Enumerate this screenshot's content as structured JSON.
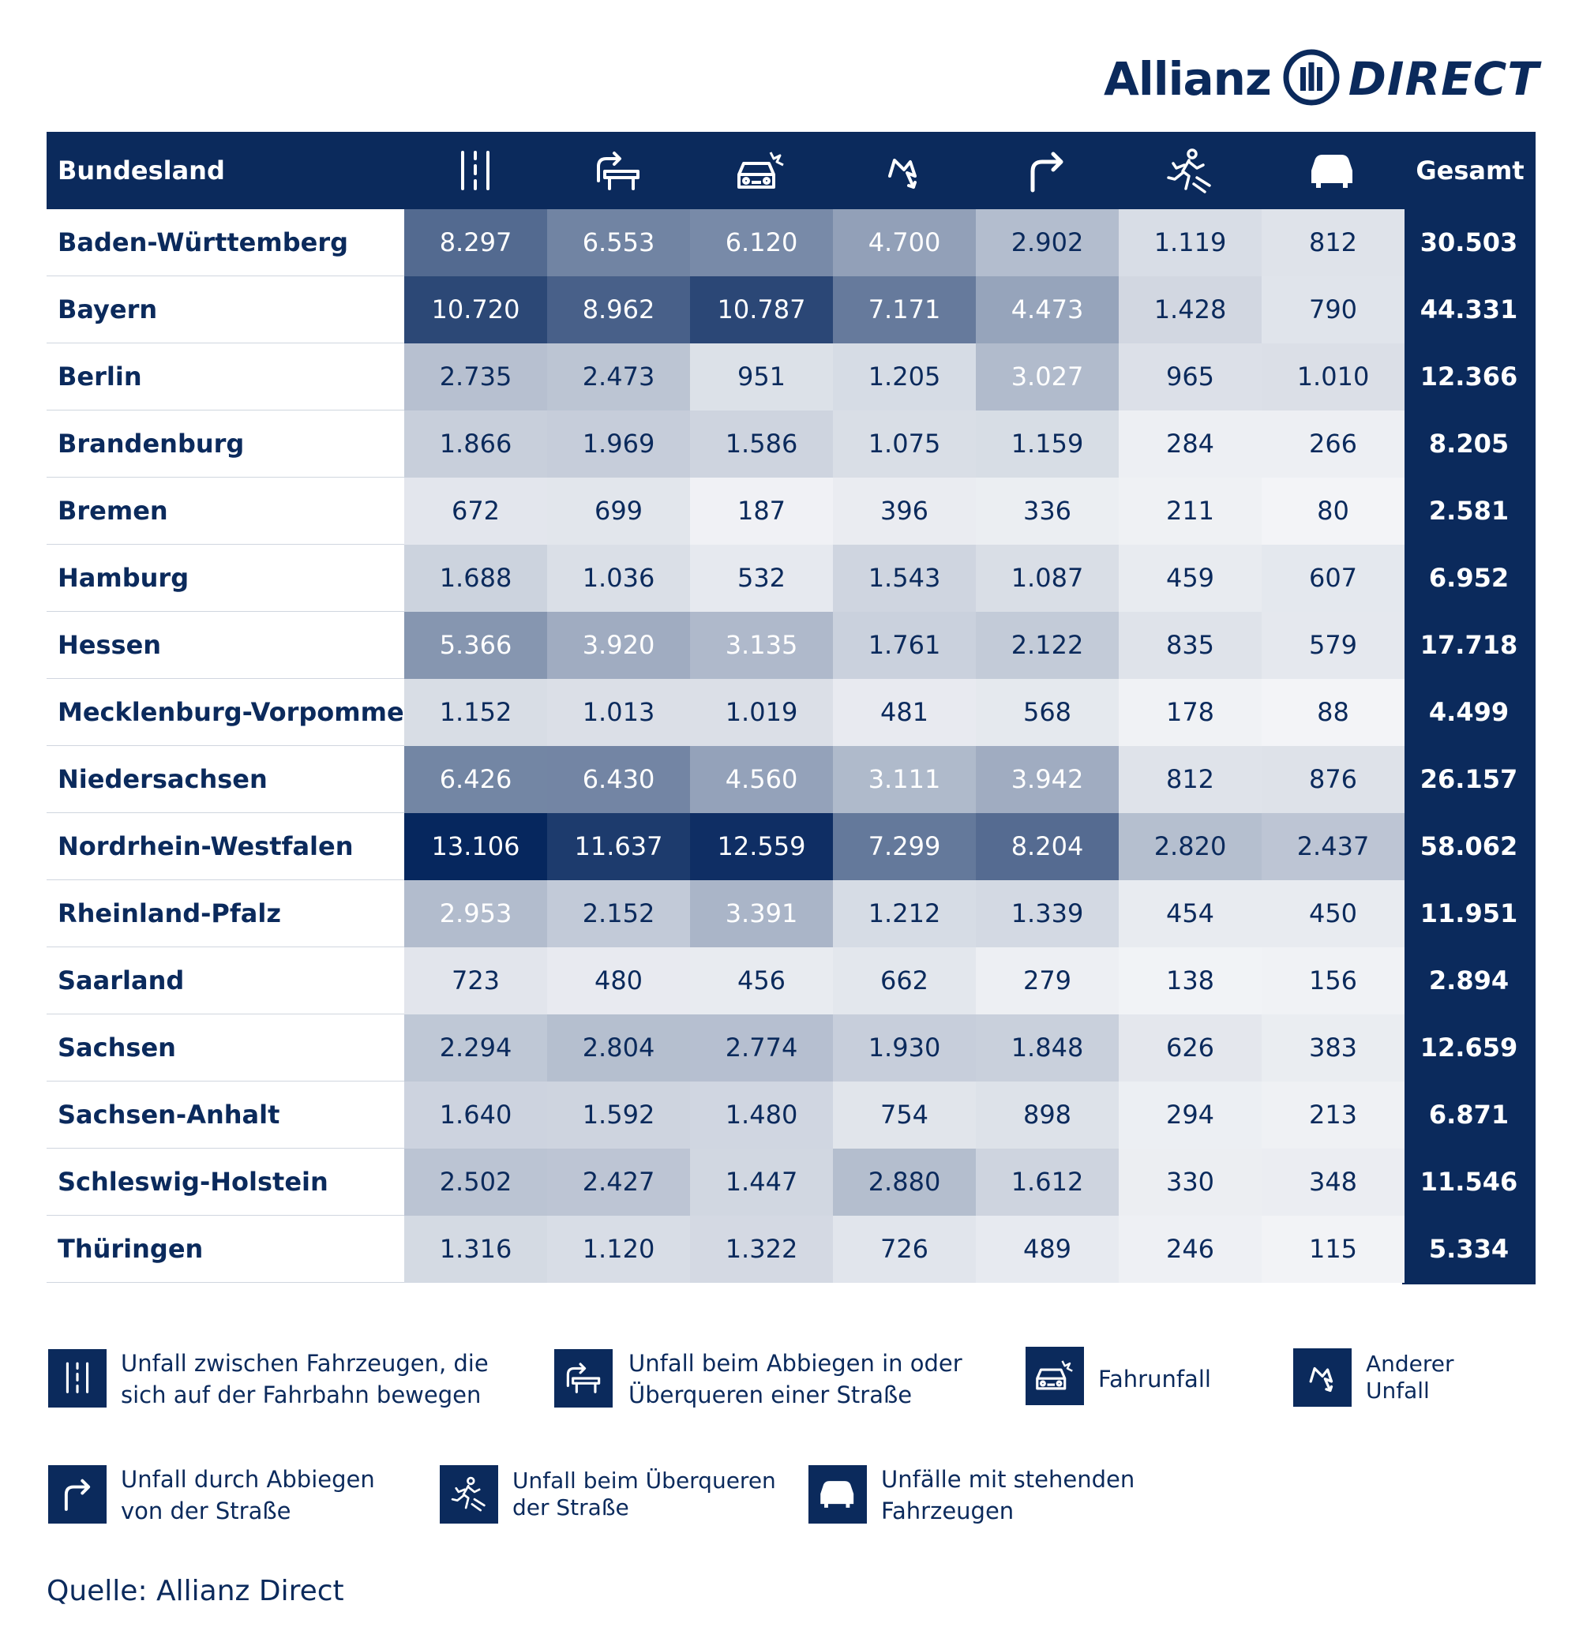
{
  "brand": {
    "name_left": "Allianz",
    "name_right": "DIRECT",
    "mark": "allianz-eagle-logo",
    "color": "#0b2a5c",
    "accent": "#3fd0f0"
  },
  "chart_data": {
    "type": "table",
    "header": {
      "first": "Bundesland",
      "last": "Gesamt"
    },
    "categories": [
      "fahrbahn-icon",
      "abbiegen-kreuzen-icon",
      "fahrunfall-icon",
      "anderer-unfall-icon",
      "abbiegen-icon",
      "fussgaenger-icon",
      "stehende-fahrzeuge-icon"
    ],
    "rows": [
      {
        "name": "Baden-Württemberg",
        "values": [
          "8.297",
          "6.553",
          "6.120",
          "4.700",
          "2.902",
          "1.119",
          "812"
        ],
        "nums": [
          8297,
          6553,
          6120,
          4700,
          2902,
          1119,
          812
        ],
        "total": "30.503"
      },
      {
        "name": "Bayern",
        "values": [
          "10.720",
          "8.962",
          "10.787",
          "7.171",
          "4.473",
          "1.428",
          "790"
        ],
        "nums": [
          10720,
          8962,
          10787,
          7171,
          4473,
          1428,
          790
        ],
        "total": "44.331"
      },
      {
        "name": "Berlin",
        "values": [
          "2.735",
          "2.473",
          "951",
          "1.205",
          "3.027",
          "965",
          "1.010"
        ],
        "nums": [
          2735,
          2473,
          951,
          1205,
          3027,
          965,
          1010
        ],
        "total": "12.366"
      },
      {
        "name": "Brandenburg",
        "values": [
          "1.866",
          "1.969",
          "1.586",
          "1.075",
          "1.159",
          "284",
          "266"
        ],
        "nums": [
          1866,
          1969,
          1586,
          1075,
          1159,
          284,
          266
        ],
        "total": "8.205"
      },
      {
        "name": "Bremen",
        "values": [
          "672",
          "699",
          "187",
          "396",
          "336",
          "211",
          "80"
        ],
        "nums": [
          672,
          699,
          187,
          396,
          336,
          211,
          80
        ],
        "total": "2.581"
      },
      {
        "name": "Hamburg",
        "values": [
          "1.688",
          "1.036",
          "532",
          "1.543",
          "1.087",
          "459",
          "607"
        ],
        "nums": [
          1688,
          1036,
          532,
          1543,
          1087,
          459,
          607
        ],
        "total": "6.952"
      },
      {
        "name": "Hessen",
        "values": [
          "5.366",
          "3.920",
          "3.135",
          "1.761",
          "2.122",
          "835",
          "579"
        ],
        "nums": [
          5366,
          3920,
          3135,
          1761,
          2122,
          835,
          579
        ],
        "total": "17.718"
      },
      {
        "name": "Mecklenburg-Vorpommern",
        "values": [
          "1.152",
          "1.013",
          "1.019",
          "481",
          "568",
          "178",
          "88"
        ],
        "nums": [
          1152,
          1013,
          1019,
          481,
          568,
          178,
          88
        ],
        "total": "4.499"
      },
      {
        "name": "Niedersachsen",
        "values": [
          "6.426",
          "6.430",
          "4.560",
          "3.111",
          "3.942",
          "812",
          "876"
        ],
        "nums": [
          6426,
          6430,
          4560,
          3111,
          3942,
          812,
          876
        ],
        "total": "26.157"
      },
      {
        "name": "Nordrhein-Westfalen",
        "values": [
          "13.106",
          "11.637",
          "12.559",
          "7.299",
          "8.204",
          "2.820",
          "2.437"
        ],
        "nums": [
          13106,
          11637,
          12559,
          7299,
          8204,
          2820,
          2437
        ],
        "total": "58.062"
      },
      {
        "name": "Rheinland-Pfalz",
        "values": [
          "2.953",
          "2.152",
          "3.391",
          "1.212",
          "1.339",
          "454",
          "450"
        ],
        "nums": [
          2953,
          2152,
          3391,
          1212,
          1339,
          454,
          450
        ],
        "total": "11.951"
      },
      {
        "name": "Saarland",
        "values": [
          "723",
          "480",
          "456",
          "662",
          "279",
          "138",
          "156"
        ],
        "nums": [
          723,
          480,
          456,
          662,
          279,
          138,
          156
        ],
        "total": "2.894"
      },
      {
        "name": "Sachsen",
        "values": [
          "2.294",
          "2.804",
          "2.774",
          "1.930",
          "1.848",
          "626",
          "383"
        ],
        "nums": [
          2294,
          2804,
          2774,
          1930,
          1848,
          626,
          383
        ],
        "total": "12.659"
      },
      {
        "name": "Sachsen-Anhalt",
        "values": [
          "1.640",
          "1.592",
          "1.480",
          "754",
          "898",
          "294",
          "213"
        ],
        "nums": [
          1640,
          1592,
          1480,
          754,
          898,
          294,
          213
        ],
        "total": "6.871"
      },
      {
        "name": "Schleswig-Holstein",
        "values": [
          "2.502",
          "2.427",
          "1.447",
          "2.880",
          "1.612",
          "330",
          "348"
        ],
        "nums": [
          2502,
          2427,
          1447,
          2880,
          1612,
          330,
          348
        ],
        "total": "11.546"
      },
      {
        "name": "Thüringen",
        "values": [
          "1.316",
          "1.120",
          "1.322",
          "726",
          "489",
          "246",
          "115"
        ],
        "nums": [
          1316,
          1120,
          1322,
          726,
          489,
          246,
          115
        ],
        "total": "5.334"
      }
    ],
    "color_scale": {
      "low": "#f6f7f9",
      "high": "#06275e",
      "max_value": 13106
    }
  },
  "legend": [
    {
      "icon": "fahrbahn-icon",
      "line1": "Unfall zwischen Fahrzeugen, die",
      "line2": "sich auf der Fahrbahn bewegen"
    },
    {
      "icon": "abbiegen-kreuzen-icon",
      "line1": "Unfall beim Abbiegen in oder",
      "line2": "Überqueren einer Straße"
    },
    {
      "icon": "fahrunfall-icon",
      "line1": "Fahrunfall",
      "line2": ""
    },
    {
      "icon": "anderer-unfall-icon",
      "line1": "Anderer",
      "line2": "Unfall"
    },
    {
      "icon": "abbiegen-icon",
      "line1": "Unfall durch Abbiegen",
      "line2": "von der Straße"
    },
    {
      "icon": "fussgaenger-icon",
      "line1": "Unfall beim Überqueren",
      "line2": "der Straße"
    },
    {
      "icon": "stehende-fahrzeuge-icon",
      "line1": "Unfälle mit stehenden",
      "line2": "Fahrzeugen"
    }
  ],
  "source": "Quelle: Allianz Direct"
}
